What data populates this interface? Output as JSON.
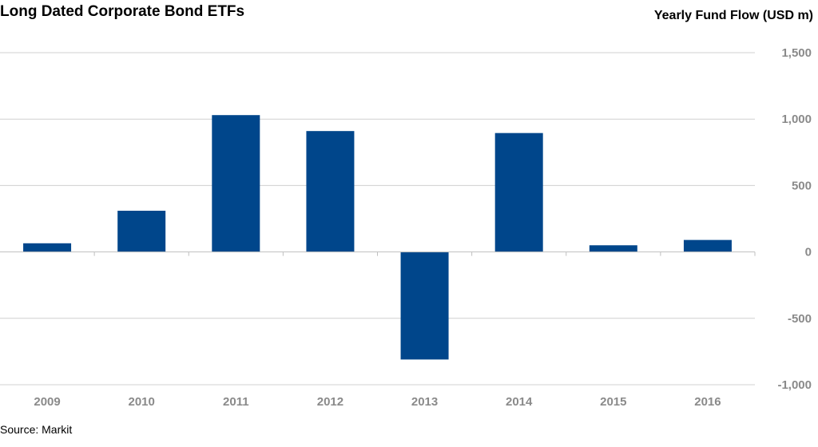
{
  "header": {
    "title": "Long Dated Corporate Bond ETFs",
    "ylabel": "Yearly Fund Flow (USD m)"
  },
  "footer": {
    "source": "Source: Markit"
  },
  "chart_data": {
    "type": "bar",
    "title": "Long Dated Corporate Bond ETFs",
    "xlabel": "",
    "ylabel": "Yearly Fund Flow (USD m)",
    "categories": [
      "2009",
      "2010",
      "2011",
      "2012",
      "2013",
      "2014",
      "2015",
      "2016"
    ],
    "values": [
      65,
      310,
      1030,
      910,
      -810,
      895,
      50,
      90
    ],
    "ylim": [
      -1000,
      1500
    ],
    "yticks": [
      1500,
      1000,
      500,
      0,
      -500,
      -1000
    ],
    "ytick_labels": [
      "1,500",
      "1,000",
      "500",
      "0",
      "-500",
      "-1,000"
    ],
    "y_axis_side": "right",
    "grid": true,
    "legend": "none",
    "bar_color": "#00468b",
    "grid_color": "#d0d0d0",
    "tick_color": "#8a8a8a"
  }
}
